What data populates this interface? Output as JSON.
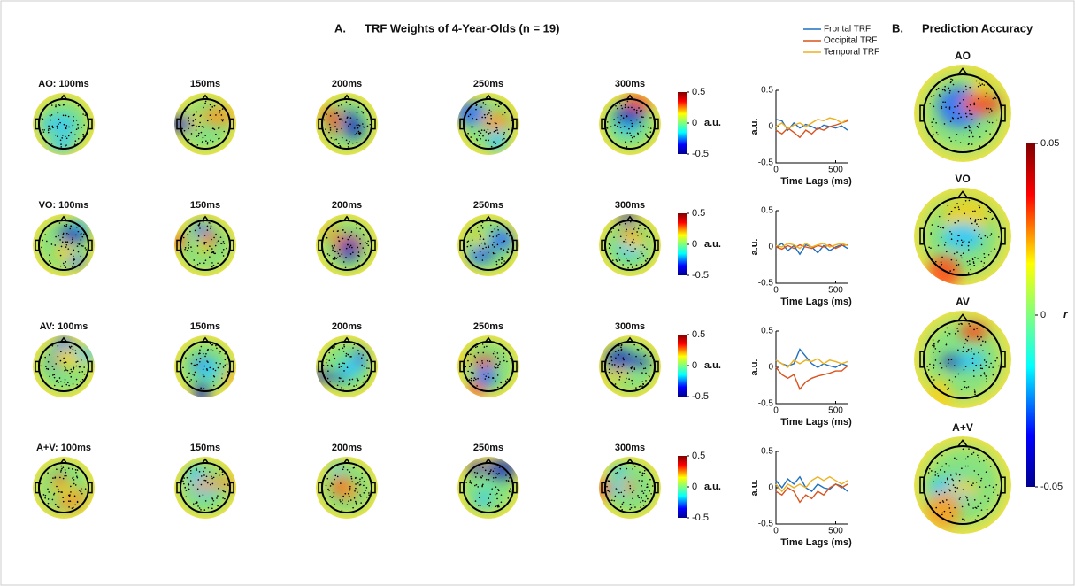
{
  "panel_a": {
    "label": "A.",
    "title": "TRF Weights of 4-Year-Olds (n = 19)",
    "rows": [
      {
        "labels": [
          "AO: 100ms",
          "150ms",
          "200ms",
          "250ms",
          "300ms"
        ],
        "colorbar": {
          "lim": [
            -0.5,
            0.5
          ],
          "ticks": [
            0.5,
            0,
            -0.5
          ],
          "unit": "a.u."
        }
      },
      {
        "labels": [
          "VO: 100ms",
          "150ms",
          "200ms",
          "250ms",
          "300ms"
        ],
        "colorbar": {
          "lim": [
            -0.5,
            0.5
          ],
          "ticks": [
            0.5,
            0,
            -0.5
          ],
          "unit": "a.u."
        }
      },
      {
        "labels": [
          "AV: 100ms",
          "150ms",
          "200ms",
          "250ms",
          "300ms"
        ],
        "colorbar": {
          "lim": [
            -0.5,
            0.5
          ],
          "ticks": [
            0.5,
            0,
            -0.5
          ],
          "unit": "a.u."
        }
      },
      {
        "labels": [
          "A+V: 100ms",
          "150ms",
          "200ms",
          "250ms",
          "300ms"
        ],
        "colorbar": {
          "lim": [
            -0.5,
            0.5
          ],
          "ticks": [
            0.5,
            0,
            -0.5
          ],
          "unit": "a.u."
        }
      }
    ]
  },
  "chart_data": [
    {
      "type": "line",
      "x_label": "Time Lags (ms)",
      "y_label": "a.u.",
      "x": [
        0,
        50,
        100,
        150,
        200,
        250,
        300,
        350,
        400,
        450,
        500,
        550,
        600
      ],
      "xlim": [
        0,
        600
      ],
      "xticks": [
        0,
        500
      ],
      "ylim": [
        -0.5,
        0.5
      ],
      "yticks": [
        -0.5,
        0,
        0.5
      ],
      "legend": "top",
      "series": [
        {
          "name": "Frontal TRF",
          "color": "#1f6fbf",
          "values": [
            0.1,
            0.08,
            -0.05,
            0.05,
            -0.02,
            0.03,
            0,
            -0.04,
            0.02,
            0,
            -0.02,
            0.01,
            -0.05
          ]
        },
        {
          "name": "Occipital TRF",
          "color": "#d9531e",
          "values": [
            -0.05,
            -0.1,
            -0.02,
            -0.08,
            -0.15,
            -0.05,
            -0.1,
            -0.02,
            -0.05,
            0,
            0.02,
            0.05,
            0.08
          ]
        },
        {
          "name": "Temporal TRF",
          "color": "#edb120",
          "values": [
            0,
            0.05,
            -0.03,
            0.02,
            0.05,
            0,
            0.05,
            0.1,
            0.08,
            0.12,
            0.1,
            0.05,
            0.1
          ]
        }
      ]
    },
    {
      "type": "line",
      "x_label": "Time Lags (ms)",
      "y_label": "a.u.",
      "x": [
        0,
        50,
        100,
        150,
        200,
        250,
        300,
        350,
        400,
        450,
        500,
        550,
        600
      ],
      "xlim": [
        0,
        600
      ],
      "xticks": [
        0,
        500
      ],
      "ylim": [
        -0.5,
        0.5
      ],
      "yticks": [
        -0.5,
        0,
        0.5
      ],
      "series": [
        {
          "color": "#1f6fbf",
          "values": [
            0,
            0.05,
            -0.05,
            0.02,
            -0.1,
            0.03,
            0,
            -0.08,
            0.02,
            -0.05,
            0,
            0.03,
            -0.02
          ]
        },
        {
          "color": "#d9531e",
          "values": [
            0,
            -0.03,
            0.02,
            -0.02,
            0.03,
            0,
            -0.02,
            0.02,
            0,
            0.03,
            -0.02,
            0.02,
            0.03
          ]
        },
        {
          "color": "#edb120",
          "values": [
            0.02,
            0,
            0.05,
            0.03,
            -0.02,
            0.05,
            0,
            0.03,
            0.05,
            0,
            0.03,
            0.05,
            0.02
          ]
        }
      ]
    },
    {
      "type": "line",
      "x_label": "Time Lags (ms)",
      "y_label": "a.u.",
      "x": [
        0,
        50,
        100,
        150,
        200,
        250,
        300,
        350,
        400,
        450,
        500,
        550,
        600
      ],
      "xlim": [
        0,
        600
      ],
      "xticks": [
        0,
        500
      ],
      "ylim": [
        -0.5,
        0.5
      ],
      "yticks": [
        -0.5,
        0,
        0.5
      ],
      "series": [
        {
          "color": "#1f6fbf",
          "values": [
            0.1,
            0.05,
            0.02,
            0.05,
            0.25,
            0.15,
            0.05,
            0,
            0.05,
            0.02,
            0,
            0.05,
            0.02
          ]
        },
        {
          "color": "#d9531e",
          "values": [
            0,
            -0.1,
            -0.15,
            -0.1,
            -0.3,
            -0.2,
            -0.15,
            -0.12,
            -0.1,
            -0.08,
            -0.05,
            -0.05,
            0.02
          ]
        },
        {
          "color": "#edb120",
          "values": [
            0.1,
            0.05,
            0,
            0.1,
            0.05,
            0.1,
            0.08,
            0.12,
            0.05,
            0.1,
            0.08,
            0.05,
            0.08
          ]
        }
      ]
    },
    {
      "type": "line",
      "x_label": "Time Lags (ms)",
      "y_label": "a.u.",
      "x": [
        0,
        50,
        100,
        150,
        200,
        250,
        300,
        350,
        400,
        450,
        500,
        550,
        600
      ],
      "xlim": [
        0,
        600
      ],
      "xticks": [
        0,
        500
      ],
      "ylim": [
        -0.5,
        0.5
      ],
      "yticks": [
        -0.5,
        0,
        0.5
      ],
      "series": [
        {
          "color": "#1f6fbf",
          "values": [
            0.1,
            0,
            0.12,
            0.05,
            0.15,
            0,
            -0.05,
            0.05,
            0,
            -0.02,
            0.05,
            0.02,
            -0.05
          ]
        },
        {
          "color": "#d9531e",
          "values": [
            -0.05,
            -0.1,
            0,
            -0.05,
            -0.2,
            -0.1,
            -0.15,
            -0.05,
            -0.1,
            0,
            0.05,
            0,
            0.05
          ]
        },
        {
          "color": "#edb120",
          "values": [
            0.05,
            -0.05,
            0.05,
            0,
            0.05,
            0,
            0.1,
            0.15,
            0.1,
            0.15,
            0.1,
            0.05,
            0.1
          ]
        }
      ]
    }
  ],
  "panel_b": {
    "label": "B.",
    "title": "Prediction Accuracy",
    "labels": [
      "AO",
      "VO",
      "AV",
      "A+V"
    ],
    "colorbar": {
      "lim": [
        -0.05,
        0.05
      ],
      "ticks": [
        0.05,
        0,
        -0.05
      ],
      "unit": "r"
    }
  }
}
